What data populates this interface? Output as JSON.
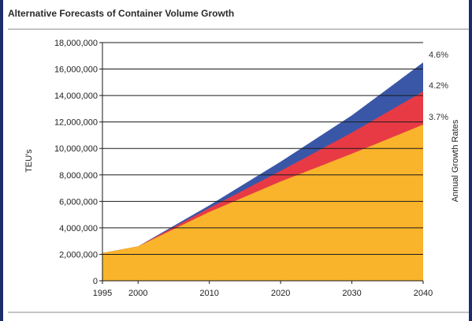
{
  "colors": {
    "low": "#f9b42b",
    "mid": "#e83a45",
    "high": "#3a57a7",
    "grid": "#1a1a1a",
    "rule": "#888888"
  },
  "chart_data": {
    "type": "area",
    "title": "Alternative Forecasts of Container Volume Growth",
    "ylabel": "TEU's",
    "right_label": "Annual Growth Rates",
    "x": [
      1995,
      2000,
      2010,
      2020,
      2030,
      2040
    ],
    "x_ticks": [
      "1995",
      "2000",
      "2010",
      "2020",
      "2030",
      "2040"
    ],
    "xlim": [
      1995,
      2040
    ],
    "ylim": [
      0,
      18000000
    ],
    "y_ticks": [
      "0",
      "2,000,000",
      "4,000,000",
      "6,000,000",
      "8,000,000",
      "10,000,000",
      "12,000,000",
      "14,000,000",
      "16,000,000",
      "18,000,000"
    ],
    "grid": true,
    "series": [
      {
        "name": "3.7%",
        "color_key": "low",
        "values": [
          2100000,
          2600000,
          5200000,
          7500000,
          9600000,
          11800000
        ]
      },
      {
        "name": "4.2%",
        "color_key": "mid",
        "values": [
          2100000,
          2600000,
          5500000,
          8300000,
          11200000,
          14300000
        ]
      },
      {
        "name": "4.6%",
        "color_key": "high",
        "values": [
          2100000,
          2600000,
          5700000,
          9000000,
          12500000,
          16500000
        ]
      }
    ]
  }
}
